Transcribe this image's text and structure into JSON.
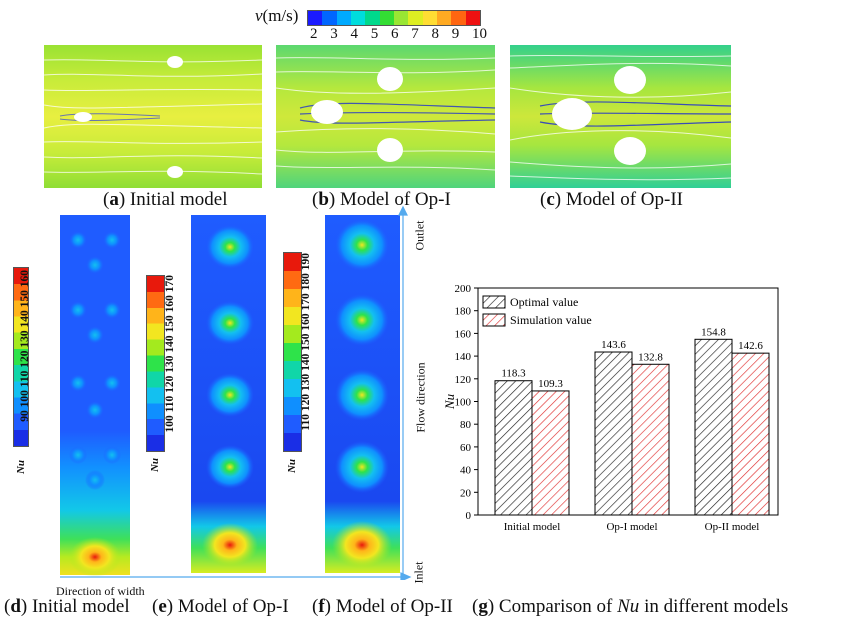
{
  "velocity_legend": {
    "label_prefix": "v",
    "label_suffix": "(m/s)",
    "ticks": [
      "2",
      "3",
      "4",
      "5",
      "6",
      "7",
      "8",
      "9",
      "10"
    ],
    "colors": [
      "#1a1aff",
      "#0066ff",
      "#00aaff",
      "#00dddd",
      "#00d98c",
      "#33dd33",
      "#99e633",
      "#ddee22",
      "#ffdd33",
      "#ffaa22",
      "#ff6611",
      "#ee1111"
    ]
  },
  "top_panels": [
    {
      "letter": "a",
      "text": " Initial model"
    },
    {
      "letter": "b",
      "text": " Model of Op-I"
    },
    {
      "letter": "c",
      "text": " Model of Op-II"
    }
  ],
  "nu_legends": [
    {
      "label": "Nu",
      "ticks": "90 100 110 120 130 140 150 160"
    },
    {
      "label": "Nu",
      "ticks": "100 110 120 130 140 150 160 170"
    },
    {
      "label": "Nu",
      "ticks": "110 120 130 140 150 160 170 180 190"
    }
  ],
  "contour_colors": [
    "#1a2ee6",
    "#1f5cff",
    "#0f8fff",
    "#13c0f0",
    "#10d6a8",
    "#2ee34a",
    "#a4ea1e",
    "#f2e620",
    "#ffb41a",
    "#ff6a12",
    "#e8190c"
  ],
  "axes_labels": {
    "outlet": "Outlet",
    "flow": "Flow direction",
    "inlet": "Inlet",
    "width": "Direction of width"
  },
  "bottom_captions": [
    {
      "letter": "d",
      "text": " Initial model "
    },
    {
      "letter": "e",
      "text": " Model of Op-I "
    },
    {
      "letter": "f",
      "text": " Model of Op-II "
    },
    {
      "letter": "g",
      "text": " Comparison of ",
      "italic": "Nu",
      "after": " in different models"
    }
  ],
  "chart_data": {
    "type": "bar",
    "categories": [
      "Initial model",
      "Op-I model",
      "Op-II model"
    ],
    "series": [
      {
        "name": "Optimal value",
        "values": [
          118.3,
          143.6,
          154.8
        ]
      },
      {
        "name": "Simulation value",
        "values": [
          109.3,
          132.8,
          142.6
        ]
      }
    ],
    "value_labels": [
      [
        "118.3",
        "143.6",
        "154.8"
      ],
      [
        "109.3",
        "132.8",
        "142.6"
      ]
    ],
    "ylabel": "Nu",
    "ylim": [
      0,
      200
    ],
    "yticks": [
      0,
      20,
      40,
      60,
      80,
      100,
      120,
      140,
      160,
      180,
      200
    ],
    "legend_position": "top-left",
    "series_colors": [
      "#222222",
      "#e03030"
    ]
  }
}
